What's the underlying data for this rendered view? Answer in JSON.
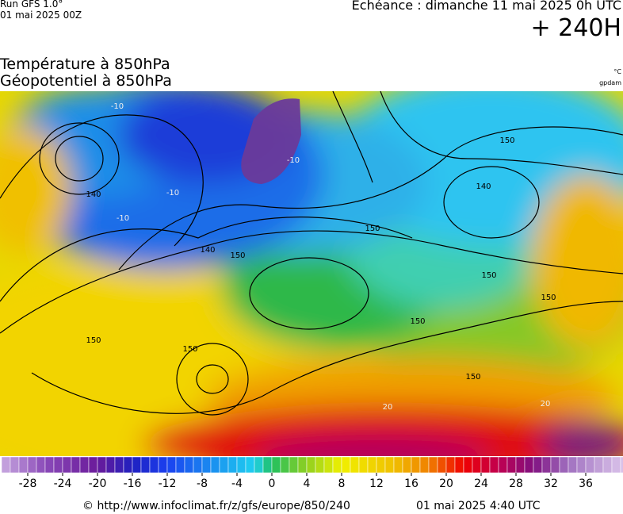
{
  "header": {
    "run": "Run GFS 1.0°",
    "run_date": "01 mai 2025 00Z",
    "valid": "Echéance : dimanche 11 mai 2025 0h UTC",
    "lead": "+ 240H"
  },
  "titles": {
    "temperature": "Température à 850hPa",
    "geopotential": "Géopotentiel à 850hPa",
    "temperature_unit": "°C",
    "geopotential_unit": "gpdam"
  },
  "map": {
    "contour_labels": [
      "150",
      "140",
      "150",
      "150",
      "150",
      "140",
      "150",
      "140",
      "150",
      "150",
      "150",
      "150",
      "-10",
      "-10",
      "-10",
      "-10",
      "20",
      "20"
    ]
  },
  "legend": {
    "ticks": [
      -28,
      -24,
      -20,
      -16,
      -12,
      -8,
      -4,
      0,
      4,
      8,
      12,
      16,
      20,
      24,
      28,
      32,
      36
    ]
  },
  "footer": {
    "source": "© http://www.infoclimat.fr/z/gfs/europe/850/240",
    "generated": "01 mai 2025  4:40 UTC"
  }
}
